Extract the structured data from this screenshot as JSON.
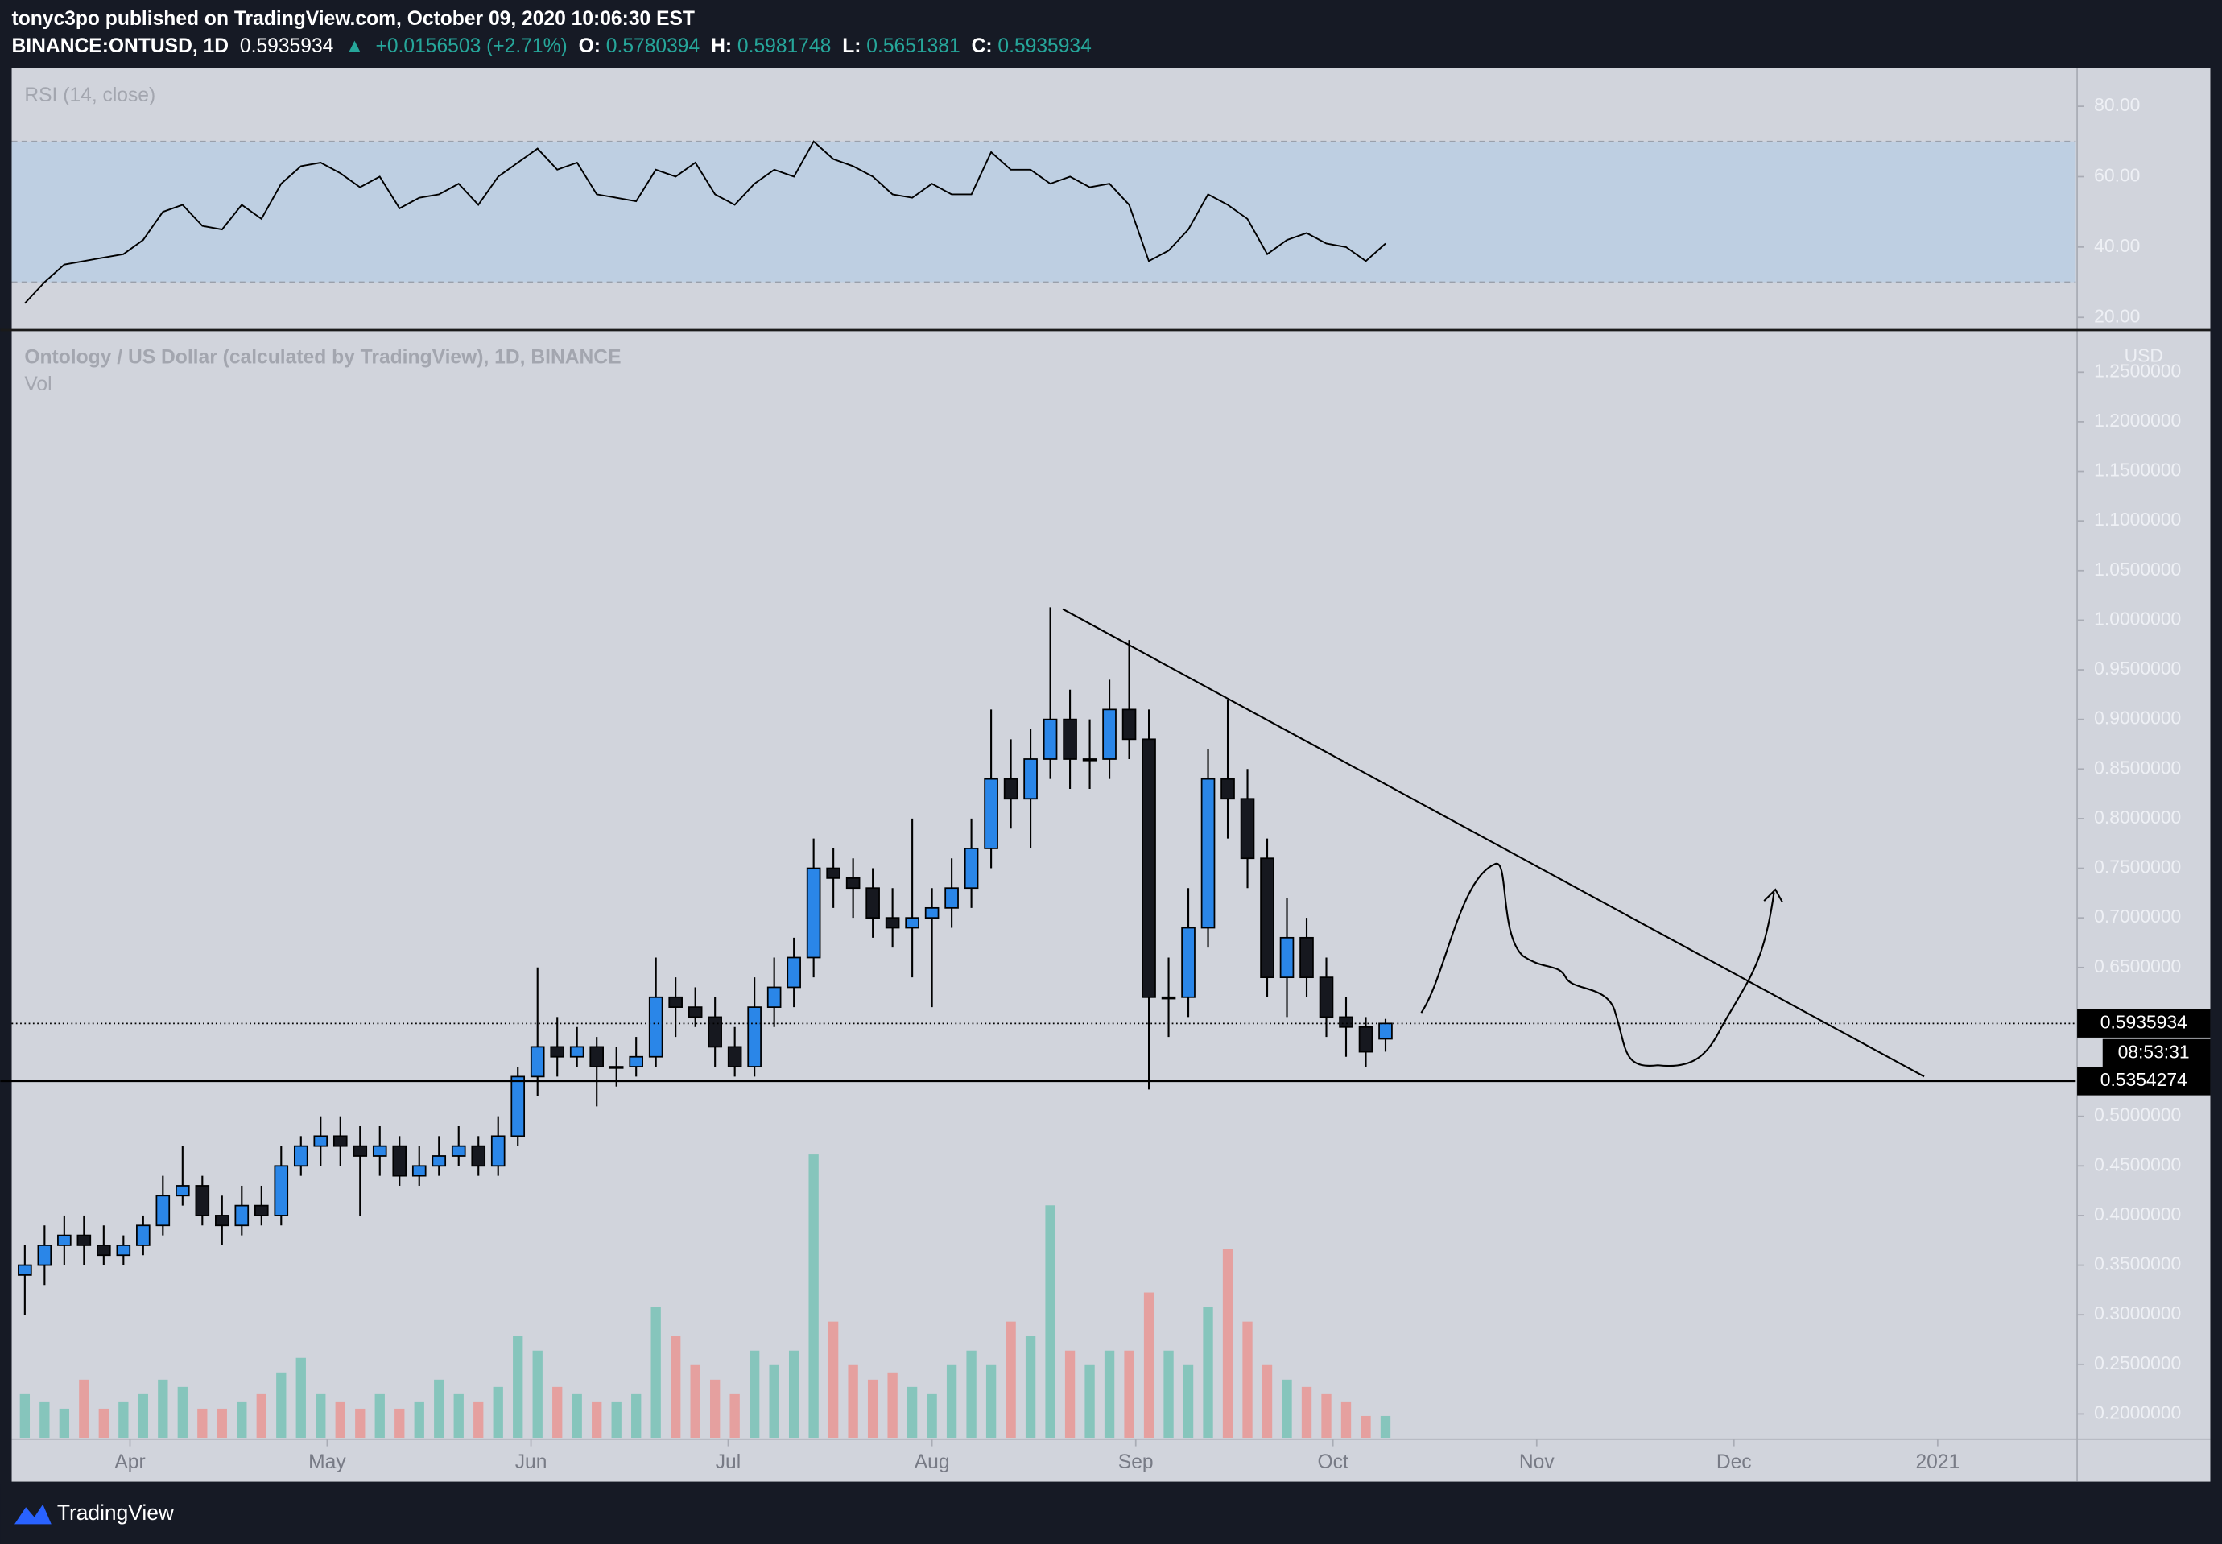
{
  "header": {
    "author_line": "tonyc3po published on TradingView.com, October 09, 2020 10:06:30 EST",
    "symbol": "BINANCE:ONTUSD, 1D",
    "arrow": "▲",
    "change": "+0.0156503 (+2.71%)",
    "o_label": "O:",
    "h_label": "H:",
    "l_label": "L:",
    "c_label": "C:"
  },
  "footer": {
    "brand": "TradingView"
  },
  "chart_data": [
    {
      "type": "candlestick",
      "title": "Ontology / US Dollar (calculated by TradingView), 1D, BINANCE",
      "volume_label": "Vol",
      "currency": "USD",
      "countdown": "08:53:31",
      "last_price": 0.5935934,
      "support_level": 0.5354274,
      "x": [
        76,
        79,
        82,
        85,
        88,
        91,
        94,
        97,
        100,
        103,
        106,
        109,
        112,
        115,
        118,
        121,
        124,
        127,
        130,
        133,
        136,
        139,
        142,
        145,
        148,
        151,
        154,
        157,
        160,
        163,
        166,
        169,
        172,
        175,
        178,
        181,
        184,
        187,
        190,
        193,
        196,
        199,
        202,
        205,
        208,
        211,
        214,
        217,
        220,
        223,
        226,
        229,
        232,
        235,
        238,
        241,
        244,
        247,
        250,
        253,
        256,
        259,
        262,
        265,
        268,
        271,
        274,
        277,
        280,
        283
      ],
      "open": [
        0.34,
        0.35,
        0.37,
        0.38,
        0.37,
        0.36,
        0.37,
        0.39,
        0.42,
        0.43,
        0.4,
        0.39,
        0.41,
        0.4,
        0.45,
        0.47,
        0.48,
        0.47,
        0.46,
        0.47,
        0.44,
        0.45,
        0.46,
        0.47,
        0.45,
        0.48,
        0.54,
        0.57,
        0.56,
        0.57,
        0.55,
        0.55,
        0.56,
        0.62,
        0.61,
        0.6,
        0.57,
        0.55,
        0.61,
        0.63,
        0.66,
        0.75,
        0.74,
        0.73,
        0.7,
        0.69,
        0.7,
        0.71,
        0.73,
        0.77,
        0.84,
        0.82,
        0.86,
        0.9,
        0.86,
        0.86,
        0.91,
        0.88,
        0.62,
        0.62,
        0.69,
        0.84,
        0.82,
        0.76,
        0.64,
        0.68,
        0.64,
        0.6,
        0.59,
        0.5780394
      ],
      "high": [
        0.37,
        0.39,
        0.4,
        0.4,
        0.39,
        0.38,
        0.4,
        0.44,
        0.47,
        0.44,
        0.42,
        0.43,
        0.43,
        0.47,
        0.48,
        0.5,
        0.5,
        0.49,
        0.49,
        0.48,
        0.47,
        0.48,
        0.49,
        0.48,
        0.5,
        0.55,
        0.65,
        0.6,
        0.59,
        0.58,
        0.57,
        0.58,
        0.66,
        0.64,
        0.63,
        0.62,
        0.59,
        0.64,
        0.66,
        0.68,
        0.78,
        0.77,
        0.76,
        0.75,
        0.73,
        0.8,
        0.73,
        0.76,
        0.8,
        0.91,
        0.88,
        0.89,
        1.013,
        0.93,
        0.9,
        0.94,
        0.98,
        0.91,
        0.66,
        0.73,
        0.87,
        0.92,
        0.85,
        0.78,
        0.72,
        0.7,
        0.66,
        0.62,
        0.6,
        0.5981748
      ],
      "low": [
        0.3,
        0.33,
        0.35,
        0.35,
        0.35,
        0.35,
        0.36,
        0.38,
        0.41,
        0.39,
        0.37,
        0.38,
        0.39,
        0.39,
        0.44,
        0.45,
        0.45,
        0.4,
        0.44,
        0.43,
        0.43,
        0.44,
        0.45,
        0.44,
        0.44,
        0.47,
        0.52,
        0.54,
        0.55,
        0.51,
        0.53,
        0.54,
        0.55,
        0.58,
        0.59,
        0.55,
        0.54,
        0.54,
        0.59,
        0.61,
        0.64,
        0.71,
        0.7,
        0.68,
        0.67,
        0.64,
        0.61,
        0.69,
        0.71,
        0.75,
        0.79,
        0.77,
        0.84,
        0.83,
        0.83,
        0.84,
        0.86,
        0.527,
        0.58,
        0.6,
        0.67,
        0.78,
        0.73,
        0.62,
        0.6,
        0.62,
        0.58,
        0.56,
        0.55,
        0.5651381
      ],
      "close": [
        0.35,
        0.37,
        0.38,
        0.37,
        0.36,
        0.37,
        0.39,
        0.42,
        0.43,
        0.4,
        0.39,
        0.41,
        0.4,
        0.45,
        0.47,
        0.48,
        0.47,
        0.46,
        0.47,
        0.44,
        0.45,
        0.46,
        0.47,
        0.45,
        0.48,
        0.54,
        0.57,
        0.56,
        0.57,
        0.55,
        0.55,
        0.56,
        0.62,
        0.61,
        0.6,
        0.57,
        0.55,
        0.61,
        0.63,
        0.66,
        0.75,
        0.74,
        0.73,
        0.7,
        0.69,
        0.7,
        0.71,
        0.73,
        0.77,
        0.84,
        0.82,
        0.86,
        0.9,
        0.86,
        0.86,
        0.91,
        0.88,
        0.62,
        0.62,
        0.69,
        0.84,
        0.82,
        0.76,
        0.64,
        0.68,
        0.64,
        0.6,
        0.59,
        0.565,
        0.5935934
      ],
      "volume": [
        3,
        2.5,
        2,
        4,
        2,
        2.5,
        3,
        4,
        3.5,
        2,
        2,
        2.5,
        3,
        4.5,
        5.5,
        3,
        2.5,
        2,
        3,
        2,
        2.5,
        4,
        3,
        2.5,
        3.5,
        7,
        6,
        3.5,
        3,
        2.5,
        2.5,
        3,
        9,
        7,
        5,
        4,
        3,
        6,
        5,
        6,
        19.5,
        8,
        5,
        4,
        4.5,
        3.5,
        3,
        5,
        6,
        5,
        8,
        7,
        16,
        6,
        5,
        6,
        6,
        10,
        6,
        5,
        9,
        13,
        8,
        5,
        4,
        3.5,
        3,
        2.5,
        1.5,
        1.5
      ],
      "up_color": "#2a86e8",
      "down_color": "#16181f",
      "wick_color": "#000000",
      "volume_up_color": "#7dc3b8",
      "volume_down_color": "#e79a98",
      "xlim": [
        74,
        388
      ],
      "xticks": [
        {
          "value": 92,
          "label": "Apr"
        },
        {
          "value": 122,
          "label": "May"
        },
        {
          "value": 153,
          "label": "Jun"
        },
        {
          "value": 183,
          "label": "Jul"
        },
        {
          "value": 214,
          "label": "Aug"
        },
        {
          "value": 245,
          "label": "Sep"
        },
        {
          "value": 275,
          "label": "Oct"
        },
        {
          "value": 306,
          "label": "Nov"
        },
        {
          "value": 336,
          "label": "Dec"
        },
        {
          "value": 367,
          "label": "2021"
        }
      ],
      "ylim": [
        0.176,
        1.291
      ],
      "yticks": [
        {
          "value": 0.2,
          "label": "0.2000000"
        },
        {
          "value": 0.25,
          "label": "0.2500000"
        },
        {
          "value": 0.3,
          "label": "0.3000000"
        },
        {
          "value": 0.35,
          "label": "0.3500000"
        },
        {
          "value": 0.4,
          "label": "0.4000000"
        },
        {
          "value": 0.45,
          "label": "0.4500000"
        },
        {
          "value": 0.5,
          "label": "0.5000000"
        },
        {
          "value": 0.65,
          "label": "0.6500000"
        },
        {
          "value": 0.7,
          "label": "0.7000000"
        },
        {
          "value": 0.75,
          "label": "0.7500000"
        },
        {
          "value": 0.8,
          "label": "0.8000000"
        },
        {
          "value": 0.85,
          "label": "0.8500000"
        },
        {
          "value": 0.9,
          "label": "0.9000000"
        },
        {
          "value": 0.95,
          "label": "0.9500000"
        },
        {
          "value": 1,
          "label": "1.0000000"
        },
        {
          "value": 1.05,
          "label": "1.0500000"
        },
        {
          "value": 1.1,
          "label": "1.1000000"
        },
        {
          "value": 1.15,
          "label": "1.1500000"
        },
        {
          "value": 1.2,
          "label": "1.2000000"
        },
        {
          "value": 1.25,
          "label": "1.2500000"
        }
      ],
      "grid": false
    },
    {
      "type": "line",
      "title": "RSI (14, close)",
      "color": "#000000",
      "band": [
        30,
        70
      ],
      "band_color": "#b9cde3",
      "x": [
        76,
        79,
        82,
        85,
        88,
        91,
        94,
        97,
        100,
        103,
        106,
        109,
        112,
        115,
        118,
        121,
        124,
        127,
        130,
        133,
        136,
        139,
        142,
        145,
        148,
        151,
        154,
        157,
        160,
        163,
        166,
        169,
        172,
        175,
        178,
        181,
        184,
        187,
        190,
        193,
        196,
        199,
        202,
        205,
        208,
        211,
        214,
        217,
        220,
        223,
        226,
        229,
        232,
        235,
        238,
        241,
        244,
        247,
        250,
        253,
        256,
        259,
        262,
        265,
        268,
        271,
        274,
        277,
        280,
        283
      ],
      "values": [
        24,
        30,
        35,
        36,
        37,
        38,
        42,
        50,
        52,
        46,
        45,
        52,
        48,
        58,
        63,
        64,
        61,
        57,
        60,
        51,
        54,
        55,
        58,
        52,
        60,
        64,
        68,
        62,
        64,
        55,
        54,
        53,
        62,
        60,
        64,
        55,
        52,
        58,
        62,
        60,
        70,
        65,
        63,
        60,
        55,
        54,
        58,
        55,
        55,
        67,
        62,
        62,
        58,
        60,
        57,
        58,
        52,
        36,
        39,
        45,
        55,
        52,
        48,
        38,
        42,
        44,
        41,
        40,
        36,
        41
      ],
      "xlim": [
        74,
        388
      ],
      "ylim": [
        16.8,
        90.1
      ],
      "yticks": [
        {
          "value": 20,
          "label": "20.00"
        },
        {
          "value": 40,
          "label": "40.00"
        },
        {
          "value": 60,
          "label": "60.00"
        },
        {
          "value": 80,
          "label": "80.00"
        }
      ],
      "grid": false
    }
  ]
}
